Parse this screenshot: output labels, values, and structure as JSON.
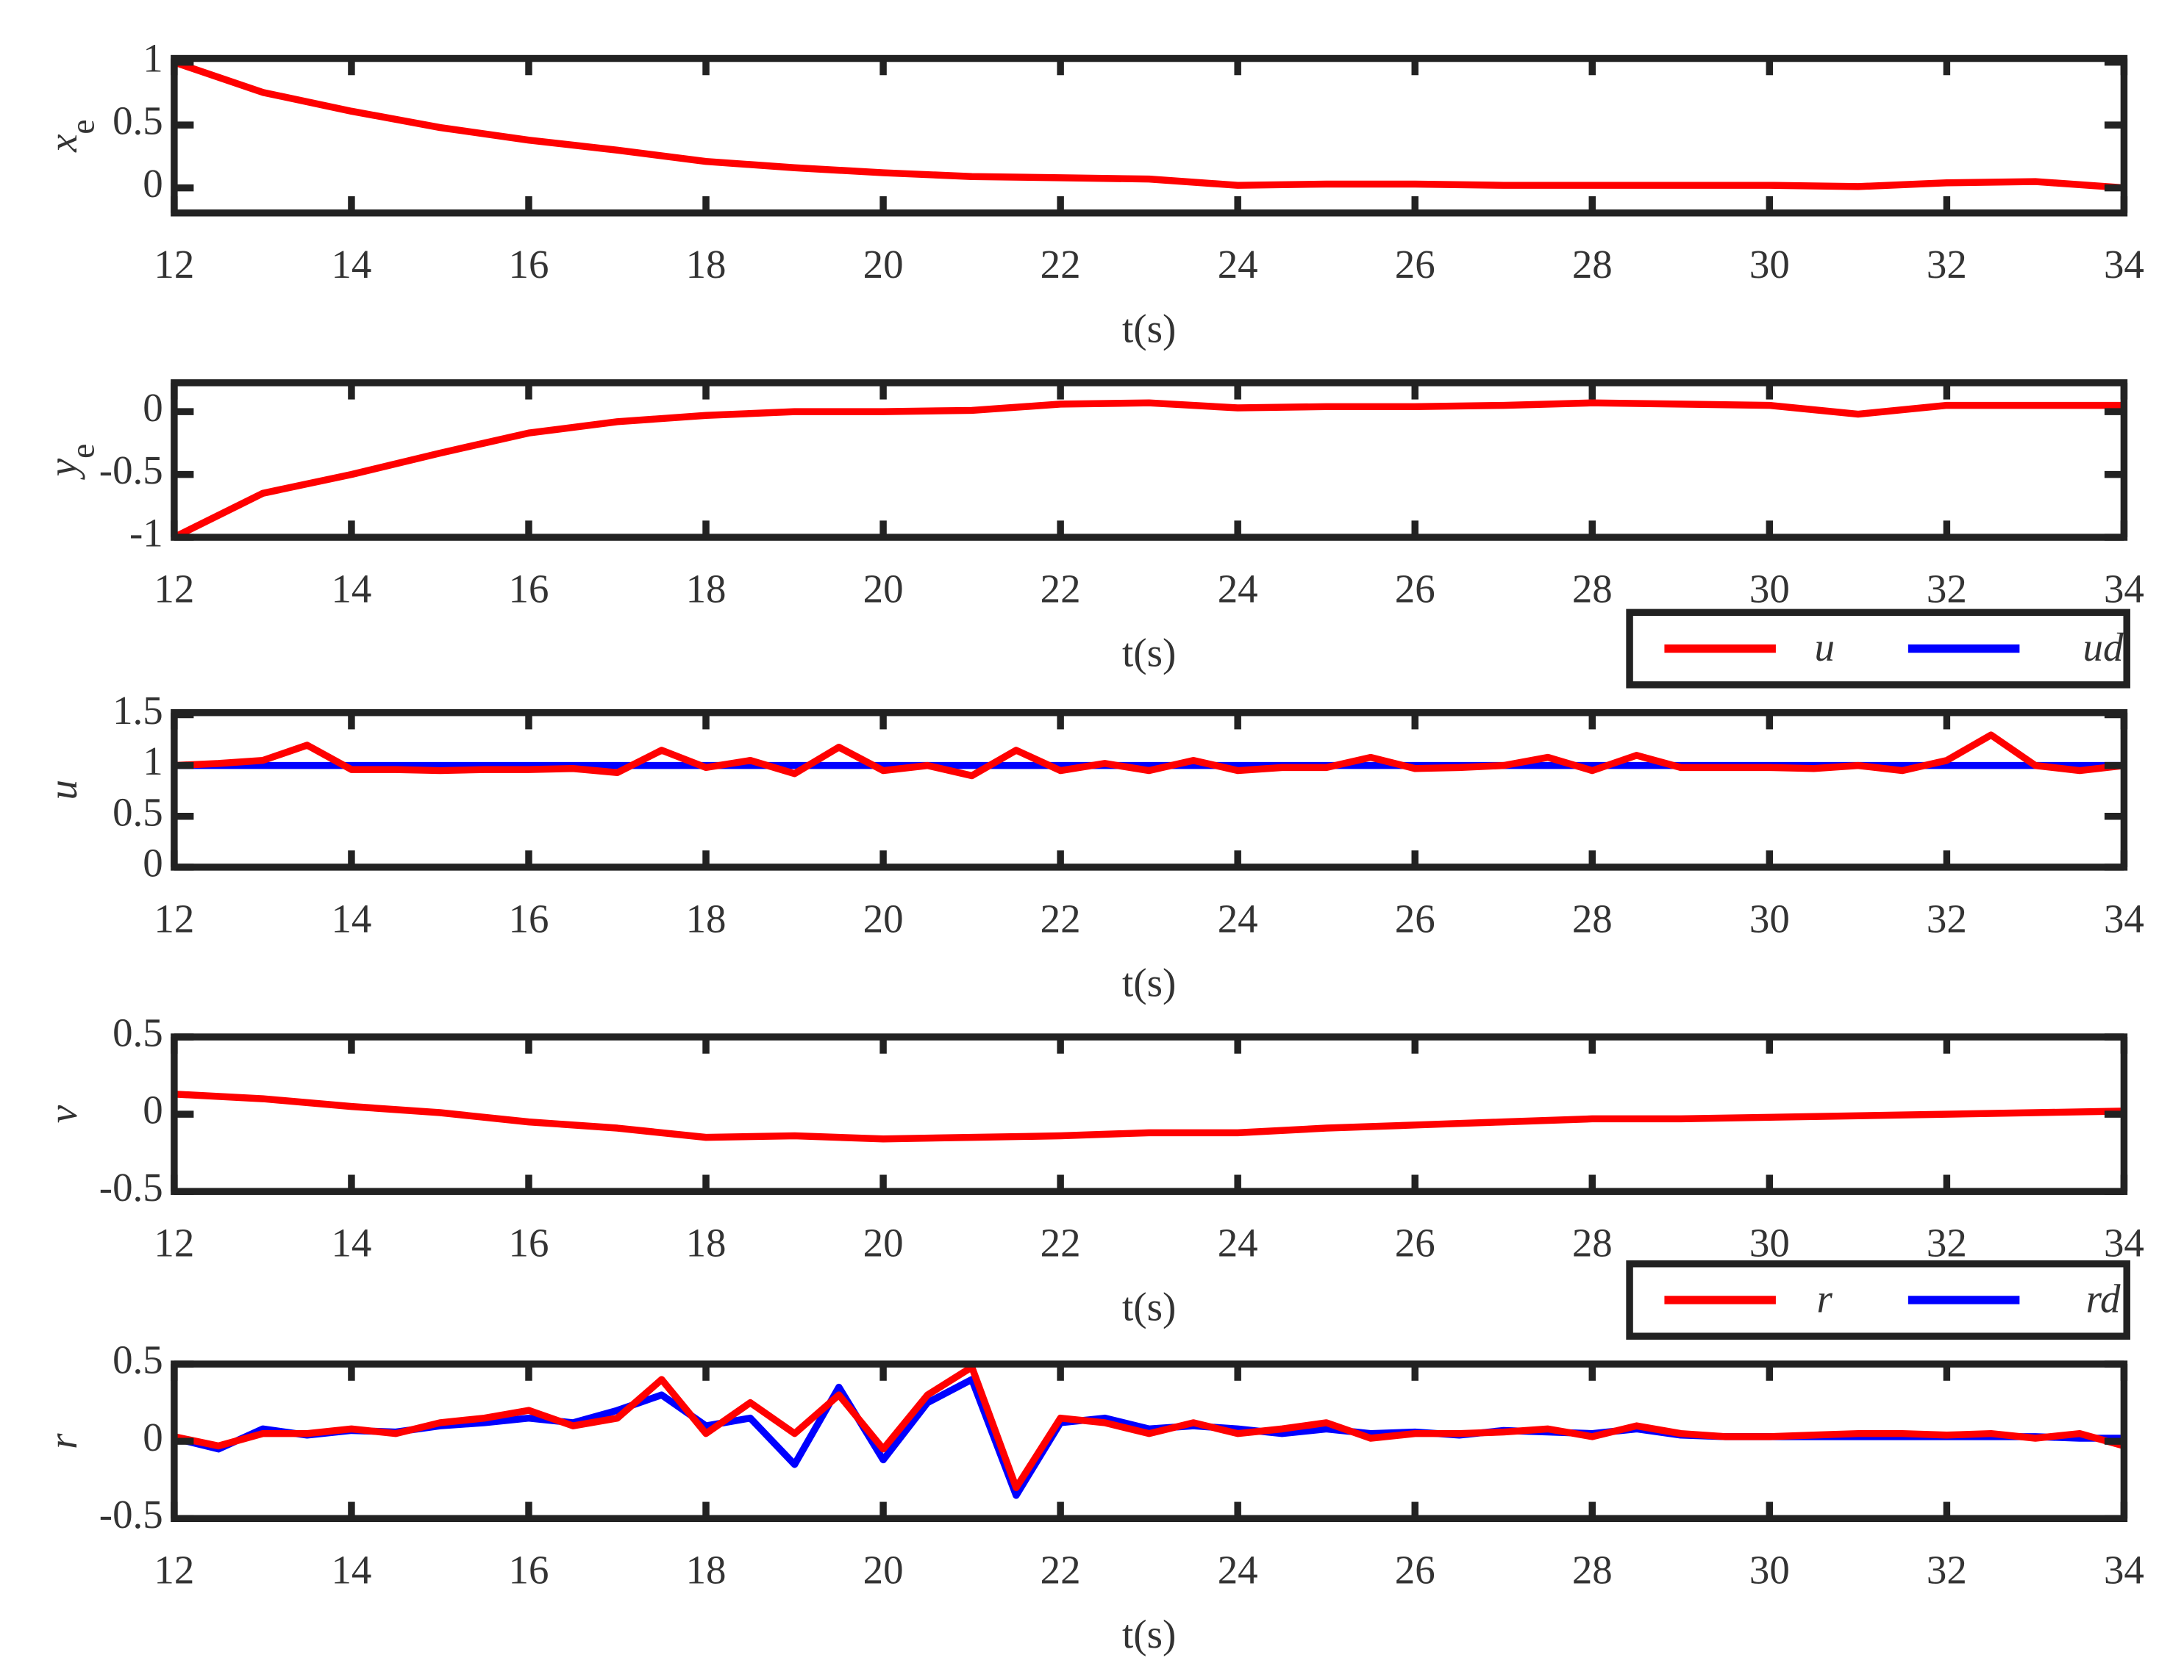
{
  "chart_data": [
    {
      "type": "line",
      "ylabel": {
        "text": "x",
        "sub": "e"
      },
      "xlabel": "t(s)",
      "x": [
        12,
        13,
        14,
        15,
        16,
        17,
        18,
        19,
        20,
        21,
        22,
        23,
        24,
        25,
        26,
        27,
        28,
        29,
        30,
        31,
        32,
        33,
        34
      ],
      "series": [
        {
          "name": "xe",
          "color": "#ff0000",
          "values": [
            1.0,
            0.76,
            0.61,
            0.48,
            0.38,
            0.3,
            0.21,
            0.16,
            0.12,
            0.09,
            0.08,
            0.07,
            0.02,
            0.03,
            0.03,
            0.02,
            0.02,
            0.02,
            0.02,
            0.01,
            0.04,
            0.05,
            0.0
          ]
        }
      ],
      "xlim": [
        12,
        34
      ],
      "xticks": [
        12,
        14,
        16,
        18,
        20,
        22,
        24,
        26,
        28,
        30,
        32,
        34
      ],
      "ylim": [
        -0.2,
        1.03
      ],
      "yticks": [
        0,
        0.5,
        1
      ],
      "legend": false
    },
    {
      "type": "line",
      "ylabel": {
        "text": "y",
        "sub": "e"
      },
      "xlabel": "t(s)",
      "x": [
        12,
        13,
        14,
        15,
        16,
        17,
        18,
        19,
        20,
        21,
        22,
        23,
        24,
        25,
        26,
        27,
        28,
        29,
        30,
        31,
        32,
        33,
        34
      ],
      "series": [
        {
          "name": "ye",
          "color": "#ff0000",
          "values": [
            -1,
            -0.65,
            -0.5,
            -0.33,
            -0.17,
            -0.08,
            -0.03,
            0.0,
            0.0,
            0.01,
            0.06,
            0.07,
            0.03,
            0.04,
            0.04,
            0.05,
            0.07,
            0.06,
            0.05,
            -0.02,
            0.05,
            0.05,
            0.05
          ]
        }
      ],
      "xlim": [
        12,
        34
      ],
      "xticks": [
        12,
        14,
        16,
        18,
        20,
        22,
        24,
        26,
        28,
        30,
        32,
        34
      ],
      "ylim": [
        -1,
        0.23
      ],
      "yticks": [
        -1,
        -0.5,
        0
      ],
      "legend": false
    },
    {
      "type": "line",
      "ylabel": {
        "text": "u"
      },
      "xlabel": "t(s)",
      "x": [
        12,
        12.5,
        13,
        13.5,
        14,
        14.5,
        15,
        15.5,
        16,
        16.5,
        17,
        17.5,
        18,
        18.5,
        19,
        19.5,
        20,
        20.5,
        21,
        21.5,
        22,
        22.5,
        23,
        23.5,
        24,
        24.5,
        25,
        25.5,
        26,
        26.5,
        27,
        27.5,
        28,
        28.5,
        29,
        29.5,
        30,
        30.5,
        31,
        31.5,
        32,
        32.5,
        33,
        33.5,
        34
      ],
      "series": [
        {
          "name": "ud",
          "color": "#0000ff",
          "values": [
            1,
            1,
            1,
            1,
            1,
            1,
            1,
            1,
            1,
            1,
            1,
            1,
            1,
            1,
            1,
            1,
            1,
            1,
            1,
            1,
            1,
            1,
            1,
            1,
            1,
            1,
            1,
            1,
            1,
            1,
            1,
            1,
            1,
            1,
            1,
            1,
            1,
            1,
            1,
            1,
            1,
            1,
            1,
            1,
            1
          ]
        },
        {
          "name": "u",
          "color": "#ff0000",
          "values": [
            1.0,
            1.02,
            1.05,
            1.2,
            0.96,
            0.96,
            0.95,
            0.96,
            0.96,
            0.97,
            0.93,
            1.15,
            0.98,
            1.05,
            0.92,
            1.18,
            0.95,
            1.0,
            0.9,
            1.15,
            0.95,
            1.02,
            0.95,
            1.05,
            0.95,
            0.98,
            0.98,
            1.08,
            0.97,
            0.98,
            1.0,
            1.08,
            0.95,
            1.1,
            0.98,
            0.98,
            0.98,
            0.97,
            1.0,
            0.95,
            1.05,
            1.3,
            1.0,
            0.95,
            1.0
          ]
        }
      ],
      "xlim": [
        12,
        34
      ],
      "xticks": [
        12,
        14,
        16,
        18,
        20,
        22,
        24,
        26,
        28,
        30,
        32,
        34
      ],
      "ylim": [
        0,
        1.52
      ],
      "yticks": [
        0,
        0.5,
        1,
        1.5
      ],
      "legend": "above-right",
      "legend_order": [
        1,
        0
      ]
    },
    {
      "type": "line",
      "ylabel": {
        "text": "v"
      },
      "xlabel": "t(s)",
      "x": [
        12,
        13,
        14,
        15,
        16,
        17,
        18,
        19,
        20,
        21,
        22,
        23,
        24,
        25,
        26,
        27,
        28,
        29,
        30,
        31,
        32,
        33,
        34
      ],
      "series": [
        {
          "name": "v",
          "color": "#ff0000",
          "values": [
            0.13,
            0.1,
            0.05,
            0.01,
            -0.05,
            -0.09,
            -0.15,
            -0.14,
            -0.16,
            -0.15,
            -0.14,
            -0.12,
            -0.12,
            -0.09,
            -0.07,
            -0.05,
            -0.03,
            -0.03,
            -0.02,
            -0.01,
            0.0,
            0.01,
            0.02
          ]
        }
      ],
      "xlim": [
        12,
        34
      ],
      "xticks": [
        12,
        14,
        16,
        18,
        20,
        22,
        24,
        26,
        28,
        30,
        32,
        34
      ],
      "ylim": [
        -0.5,
        0.5
      ],
      "yticks": [
        -0.5,
        0,
        0.5
      ],
      "legend": false
    },
    {
      "type": "line",
      "ylabel": {
        "text": "r"
      },
      "xlabel": "t(s)",
      "x": [
        12,
        12.5,
        13,
        13.5,
        14,
        14.5,
        15,
        15.5,
        16,
        16.5,
        17,
        17.5,
        18,
        18.5,
        19,
        19.5,
        20,
        20.5,
        21,
        21.5,
        22,
        22.5,
        23,
        23.5,
        24,
        24.5,
        25,
        25.5,
        26,
        26.5,
        27,
        27.5,
        28,
        28.5,
        29,
        29.5,
        30,
        30.5,
        31,
        31.5,
        32,
        32.5,
        33,
        33.5,
        34
      ],
      "series": [
        {
          "name": "rd",
          "color": "#0000ff",
          "values": [
            0.02,
            -0.05,
            0.08,
            0.04,
            0.07,
            0.06,
            0.1,
            0.12,
            0.15,
            0.12,
            0.2,
            0.3,
            0.1,
            0.15,
            -0.15,
            0.35,
            -0.12,
            0.25,
            0.4,
            -0.35,
            0.12,
            0.15,
            0.08,
            0.1,
            0.08,
            0.05,
            0.08,
            0.05,
            0.06,
            0.04,
            0.07,
            0.06,
            0.05,
            0.08,
            0.04,
            0.03,
            0.03,
            0.03,
            0.03,
            0.03,
            0.03,
            0.03,
            0.03,
            0.02,
            0.02
          ]
        },
        {
          "name": "r",
          "color": "#ff0000",
          "values": [
            0.03,
            -0.03,
            0.05,
            0.05,
            0.08,
            0.05,
            0.12,
            0.15,
            0.2,
            0.1,
            0.15,
            0.4,
            0.05,
            0.25,
            0.05,
            0.3,
            -0.05,
            0.3,
            0.48,
            -0.3,
            0.15,
            0.12,
            0.05,
            0.12,
            0.05,
            0.08,
            0.12,
            0.02,
            0.05,
            0.05,
            0.06,
            0.08,
            0.03,
            0.1,
            0.05,
            0.03,
            0.03,
            0.04,
            0.05,
            0.05,
            0.04,
            0.05,
            0.02,
            0.05,
            -0.03
          ]
        }
      ],
      "xlim": [
        12,
        34
      ],
      "xticks": [
        12,
        14,
        16,
        18,
        20,
        22,
        24,
        26,
        28,
        30,
        32,
        34
      ],
      "ylim": [
        -0.5,
        0.5
      ],
      "yticks": [
        -0.5,
        0,
        0.5
      ],
      "legend": "above-right",
      "legend_order": [
        1,
        0
      ]
    }
  ]
}
